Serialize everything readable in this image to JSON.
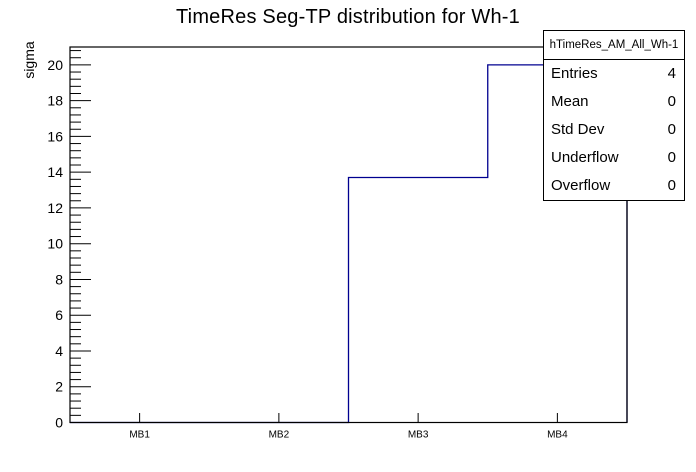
{
  "title": "TimeRes Seg-TP distribution for Wh-1",
  "colors": {
    "background": "#ffffff",
    "frame": "#000000",
    "hist_line": "#000090",
    "text": "#000000"
  },
  "chart_data": {
    "type": "bar",
    "subtype": "root-step-histogram",
    "title": "TimeRes Seg-TP distribution for Wh-1",
    "xlabel": "",
    "ylabel": "sigma",
    "categories": [
      "MB1",
      "MB2",
      "MB3",
      "MB4"
    ],
    "values": [
      0,
      0,
      13.7,
      20
    ],
    "ylim": [
      0,
      21
    ],
    "y_ticks": [
      0,
      2,
      4,
      6,
      8,
      10,
      12,
      14,
      16,
      18,
      20
    ],
    "y_major_step": 2,
    "y_minor_step": 0.4,
    "grid": false,
    "legend_position": "none",
    "line_color": "#000090"
  },
  "stats_box": {
    "header": "hTimeRes_AM_All_Wh-1",
    "rows": [
      {
        "label": "Entries",
        "value": "4"
      },
      {
        "label": "Mean",
        "value": "0"
      },
      {
        "label": "Std Dev",
        "value": "0"
      },
      {
        "label": "Underflow",
        "value": "0"
      },
      {
        "label": "Overflow",
        "value": "0"
      }
    ]
  }
}
